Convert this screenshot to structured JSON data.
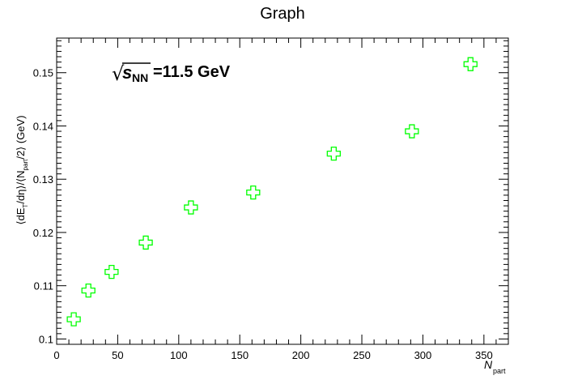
{
  "chart_data": {
    "type": "scatter",
    "title": "Graph",
    "annotation": {
      "sqrt_symbol": "√",
      "s_text": "s",
      "subscript": "NN",
      "value_text": "=11.5 GeV"
    },
    "xlabel": {
      "main": "N",
      "sub": "part"
    },
    "ylabel": {
      "p1": "⟨dE",
      "sub1": "T",
      "p2": "/dη⟩/⟨N",
      "sub2": "part",
      "p3": "/2⟩ (GeV)"
    },
    "xlim": [
      0,
      370
    ],
    "ylim": [
      0.099,
      0.1565
    ],
    "xticks": [
      0,
      50,
      100,
      150,
      200,
      250,
      300,
      350
    ],
    "yticks": [
      0.1,
      0.11,
      0.12,
      0.13,
      0.14,
      0.15
    ],
    "xtick_labels": [
      "0",
      "50",
      "100",
      "150",
      "200",
      "250",
      "300",
      "350"
    ],
    "ytick_labels": [
      "0.1",
      "0.11",
      "0.12",
      "0.13",
      "0.14",
      "0.15"
    ],
    "grid": false,
    "marker": "open-cross",
    "marker_color": "#00ff00",
    "x": [
      14,
      26,
      45,
      73,
      110,
      161,
      227,
      291,
      339
    ],
    "y": [
      0.1037,
      0.1091,
      0.1126,
      0.1181,
      0.1247,
      0.1275,
      0.1348,
      0.139,
      0.1516
    ]
  }
}
